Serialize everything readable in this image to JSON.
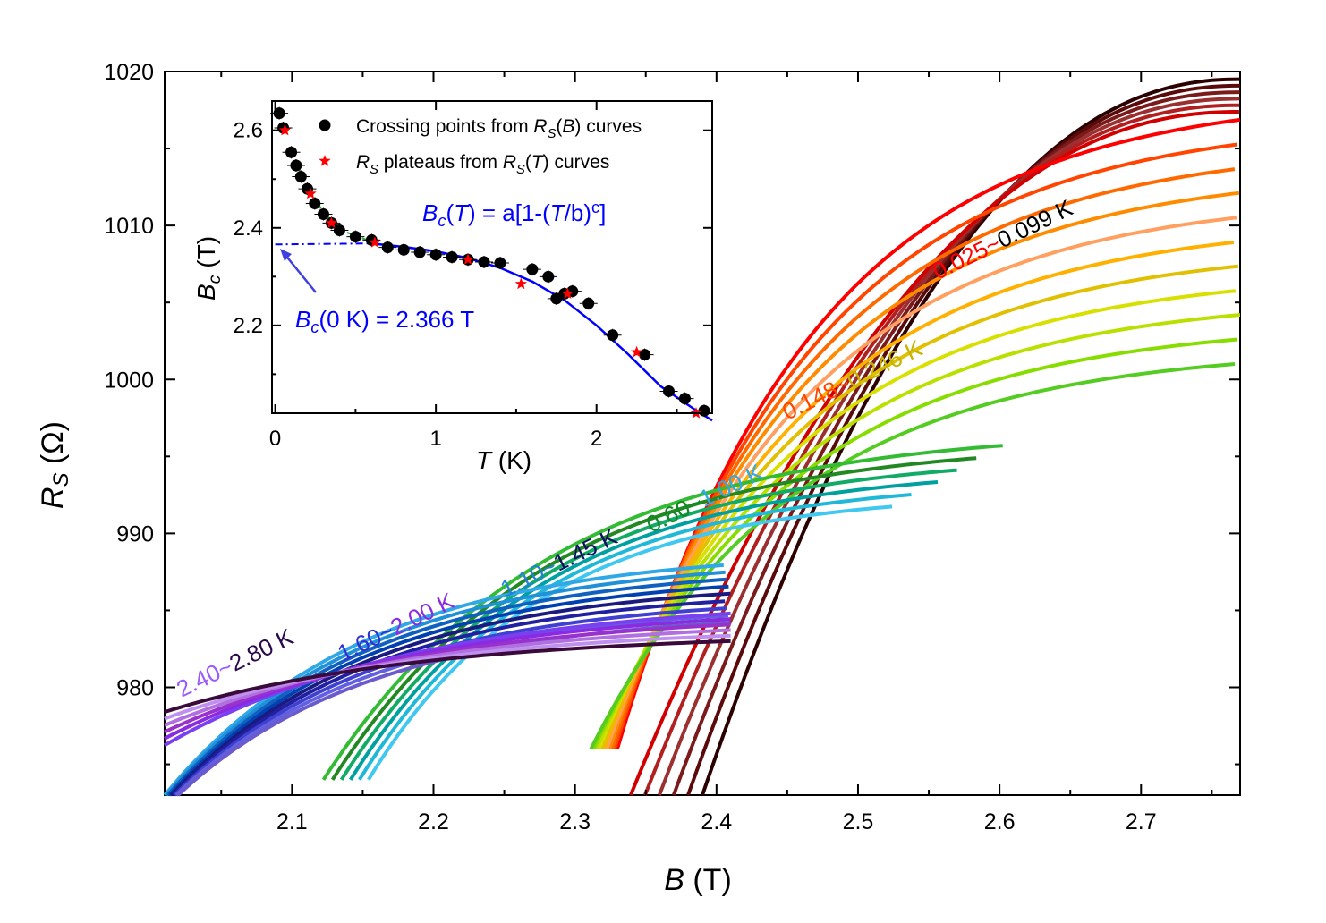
{
  "chart_data": {
    "type": "line",
    "xlabel": {
      "var": "B",
      "unit": " (T)"
    },
    "ylabel": {
      "var": "R",
      "sub": "S",
      "unit": " (Ω)"
    },
    "xlim": [
      2.01,
      2.77
    ],
    "ylim": [
      973,
      1020
    ],
    "xticks": [
      2.1,
      2.2,
      2.3,
      2.4,
      2.5,
      2.6,
      2.7
    ],
    "yticks": [
      980,
      990,
      1000,
      1010,
      1020
    ],
    "grid": false,
    "curve_colors": [
      "#2a0000",
      "#5a0a0a",
      "#7a1a1a",
      "#9a3030",
      "#b02020",
      "#d00000",
      "#ff0000",
      "#ff4500",
      "#ff6a00",
      "#ff8c00",
      "#ffa060",
      "#ffb000",
      "#e0c000",
      "#d8e000",
      "#b8e000",
      "#88dd00",
      "#55cc22",
      "#33bb33",
      "#228822",
      "#11aa66",
      "#00a0a0",
      "#20b8d8",
      "#40c8f0",
      "#30a8e8",
      "#2090d8",
      "#1060c0",
      "#0040b0",
      "#1a1a80",
      "#2020a0",
      "#4040d0",
      "#6060e0",
      "#6a5acd",
      "#7b3ff2",
      "#8a2be2",
      "#9932cc",
      "#b070e0",
      "#c090f0",
      "#3a0a3a"
    ],
    "temperature_labels": [
      {
        "text": "2.40~2.80 K",
        "parts": [
          {
            "t": "2.40~",
            "c": "#9b59ff"
          },
          {
            "t": "2.80 K",
            "c": "#2a0a4a"
          }
        ]
      },
      {
        "text": "1.60~2.00 K",
        "parts": [
          {
            "t": "1.60~",
            "c": "#3030d0"
          },
          {
            "t": "2.00 K",
            "c": "#8a2be2"
          }
        ]
      },
      {
        "text": "1.10~1.45 K",
        "parts": [
          {
            "t": "1.10~",
            "c": "#2080e0"
          },
          {
            "t": "1.45 K",
            "c": "#101060"
          }
        ]
      },
      {
        "text": "0.60~1.00 K",
        "parts": [
          {
            "t": "0.60~",
            "c": "#118822"
          },
          {
            "t": "1.00 K",
            "c": "#30a8e8"
          }
        ]
      },
      {
        "text": "0.148~0.246 K",
        "parts": [
          {
            "t": "0.148~",
            "c": "#ff4500"
          },
          {
            "t": "0.246 K",
            "c": "#c8b400"
          }
        ]
      },
      {
        "text": "0.025~0.099 K",
        "parts": [
          {
            "t": "0.025~",
            "c": "#ff0000"
          },
          {
            "t": "0.099 K",
            "c": "#000000"
          }
        ]
      }
    ],
    "inset": {
      "type": "scatter",
      "xlabel": {
        "var": "T",
        "unit": " (K)"
      },
      "ylabel": {
        "var": "B",
        "sub": "c",
        "unit": " (T)"
      },
      "xlim": [
        -0.02,
        2.72
      ],
      "ylim": [
        2.02,
        2.66
      ],
      "xticks": [
        0,
        1,
        2
      ],
      "yticks": [
        2.2,
        2.4,
        2.6
      ],
      "series": [
        {
          "name": "Crossing points from R_S(B) curves",
          "legend": [
            {
              "t": "Crossing points from "
            },
            {
              "t": "R",
              "i": true
            },
            {
              "t": "S",
              "sub": true,
              "i": true
            },
            {
              "t": "("
            },
            {
              "t": "B",
              "i": true
            },
            {
              "t": ") curves"
            }
          ],
          "marker": "circle",
          "color": "#000000",
          "points": [
            [
              0.025,
              2.635
            ],
            [
              0.05,
              2.605
            ],
            [
              0.1,
              2.555
            ],
            [
              0.13,
              2.528
            ],
            [
              0.16,
              2.505
            ],
            [
              0.2,
              2.48
            ],
            [
              0.246,
              2.45
            ],
            [
              0.3,
              2.428
            ],
            [
              0.35,
              2.41
            ],
            [
              0.4,
              2.395
            ],
            [
              0.5,
              2.382
            ],
            [
              0.6,
              2.375
            ],
            [
              0.7,
              2.36
            ],
            [
              0.8,
              2.355
            ],
            [
              0.9,
              2.35
            ],
            [
              1.0,
              2.345
            ],
            [
              1.1,
              2.34
            ],
            [
              1.2,
              2.335
            ],
            [
              1.3,
              2.33
            ],
            [
              1.4,
              2.328
            ],
            [
              1.6,
              2.315
            ],
            [
              1.7,
              2.3
            ],
            [
              1.75,
              2.255
            ],
            [
              1.8,
              2.265
            ],
            [
              1.85,
              2.27
            ],
            [
              1.95,
              2.245
            ],
            [
              2.1,
              2.18
            ],
            [
              2.3,
              2.14
            ],
            [
              2.45,
              2.065
            ],
            [
              2.55,
              2.05
            ],
            [
              2.67,
              2.025
            ]
          ]
        },
        {
          "name": "R_S plateaus from R_S(T) curves",
          "legend": [
            {
              "t": "R",
              "i": true
            },
            {
              "t": "S",
              "sub": true,
              "i": true
            },
            {
              "t": " plateaus from "
            },
            {
              "t": "R",
              "i": true
            },
            {
              "t": "S",
              "sub": true,
              "i": true
            },
            {
              "t": "("
            },
            {
              "t": "T",
              "i": true
            },
            {
              "t": ") curves"
            }
          ],
          "marker": "star",
          "color": "#ff0000",
          "points": [
            [
              0.06,
              2.6
            ],
            [
              0.22,
              2.47
            ],
            [
              0.35,
              2.41
            ],
            [
              0.62,
              2.37
            ],
            [
              1.2,
              2.335
            ],
            [
              1.53,
              2.285
            ],
            [
              1.82,
              2.265
            ],
            [
              2.25,
              2.145
            ],
            [
              2.62,
              2.02
            ]
          ]
        }
      ],
      "fit": {
        "equation": [
          {
            "t": "B",
            "i": true
          },
          {
            "t": "c",
            "sub": true,
            "i": true
          },
          {
            "t": "("
          },
          {
            "t": "T",
            "i": true
          },
          {
            "t": ") = a[1-("
          },
          {
            "t": "T",
            "i": true
          },
          {
            "t": "/b)"
          },
          {
            "t": "c",
            "sup": true
          },
          {
            "t": "]"
          }
        ],
        "color": "#0000ff",
        "points": [
          [
            0.6,
            2.368
          ],
          [
            0.8,
            2.361
          ],
          [
            1.0,
            2.352
          ],
          [
            1.2,
            2.338
          ],
          [
            1.4,
            2.318
          ],
          [
            1.6,
            2.29
          ],
          [
            1.8,
            2.252
          ],
          [
            2.0,
            2.2
          ],
          [
            2.2,
            2.14
          ],
          [
            2.4,
            2.075
          ],
          [
            2.6,
            2.03
          ],
          [
            2.72,
            2.005
          ]
        ],
        "extrapolation": [
          [
            0.0,
            2.366
          ],
          [
            0.6,
            2.368
          ]
        ]
      },
      "annotation": [
        {
          "t": "B",
          "i": true
        },
        {
          "t": "c",
          "sub": true,
          "i": true
        },
        {
          "t": "(0 K) = 2.366 T"
        }
      ]
    }
  }
}
